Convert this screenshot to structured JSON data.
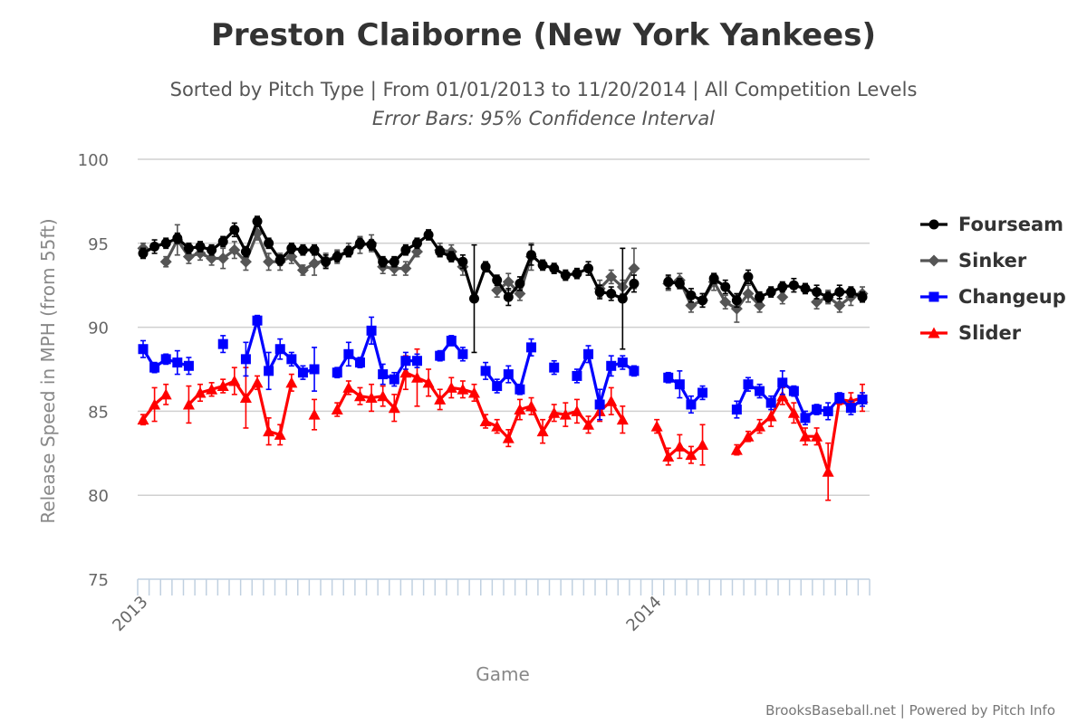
{
  "chart_data": {
    "type": "line",
    "title": "Preston Claiborne (New York Yankees)",
    "subtitle": "Sorted by Pitch Type | From 01/01/2013 to 11/20/2014 | All Competition Levels",
    "subtitle2": "Error Bars: 95% Confidence Interval",
    "xlabel": "Game",
    "ylabel": "Release Speed in MPH (from 55ft)",
    "ylim": [
      75,
      100
    ],
    "yticks": [
      75,
      80,
      85,
      90,
      95,
      100
    ],
    "x_tick_labels": [
      {
        "label": "2013",
        "game": 1
      },
      {
        "label": "2014",
        "game": 46
      }
    ],
    "n_games": 64,
    "grid": true,
    "legend_position": "right",
    "credits": "BrooksBaseball.net | Powered by Pitch Info",
    "series": [
      {
        "name": "Fourseam",
        "color": "#000000",
        "marker": "circle",
        "values": [
          94.4,
          94.8,
          95.0,
          95.3,
          94.7,
          94.8,
          94.6,
          95.1,
          95.8,
          94.5,
          96.3,
          95.0,
          94.0,
          94.7,
          94.6,
          94.6,
          93.9,
          94.2,
          94.5,
          95.0,
          94.9,
          93.9,
          93.9,
          94.6,
          95.0,
          95.5,
          94.5,
          94.2,
          93.9,
          91.7,
          93.6,
          92.8,
          91.8,
          92.6,
          94.3,
          93.7,
          93.5,
          93.1,
          93.2,
          93.5,
          92.1,
          92.0,
          91.7,
          92.6,
          null,
          null,
          92.7,
          92.6,
          91.9,
          91.6,
          92.9,
          92.4,
          91.6,
          93.0,
          91.8,
          92.1,
          92.4,
          92.5,
          92.3,
          92.1,
          91.8,
          92.1,
          92.1,
          91.8
        ],
        "err": [
          0.3,
          0.4,
          0.3,
          0.3,
          0.3,
          0.3,
          0.3,
          0.3,
          0.4,
          0.3,
          0.3,
          0.3,
          0.3,
          0.3,
          0.3,
          0.3,
          0.4,
          0.3,
          0.3,
          0.3,
          0.3,
          0.3,
          0.3,
          0.3,
          0.3,
          0.3,
          0.3,
          0.3,
          0.4,
          3.2,
          0.3,
          0.3,
          0.5,
          0.4,
          0.6,
          0.3,
          0.3,
          0.3,
          0.3,
          0.4,
          0.4,
          0.4,
          3.0,
          0.5,
          null,
          null,
          0.4,
          0.3,
          0.4,
          0.4,
          0.3,
          0.4,
          0.4,
          0.4,
          0.3,
          0.3,
          0.3,
          0.4,
          0.3,
          0.4,
          0.3,
          0.4,
          0.3,
          0.3
        ]
      },
      {
        "name": "Sinker",
        "color": "#555555",
        "marker": "diamond",
        "values": [
          94.7,
          null,
          93.9,
          95.2,
          94.2,
          94.4,
          94.1,
          94.1,
          94.6,
          93.9,
          95.6,
          93.9,
          93.9,
          94.2,
          93.4,
          93.8,
          94.0,
          94.2,
          94.6,
          94.9,
          95.0,
          93.6,
          93.5,
          93.5,
          94.5,
          null,
          94.6,
          94.5,
          93.6,
          null,
          null,
          92.2,
          92.7,
          92.0,
          94.2,
          null,
          null,
          null,
          null,
          null,
          92.3,
          93.0,
          92.4,
          93.5,
          null,
          null,
          92.6,
          92.8,
          91.3,
          91.6,
          92.7,
          91.5,
          91.1,
          92.0,
          91.3,
          null,
          91.8,
          null,
          null,
          91.5,
          91.8,
          91.3,
          91.8,
          92.0
        ],
        "err": [
          0.3,
          null,
          0.3,
          0.9,
          0.4,
          0.4,
          0.4,
          0.6,
          0.5,
          0.5,
          0.4,
          0.5,
          0.5,
          0.4,
          0.3,
          0.7,
          0.4,
          0.4,
          0.4,
          0.5,
          0.5,
          0.4,
          0.4,
          0.4,
          0.3,
          null,
          0.4,
          0.4,
          0.5,
          null,
          null,
          0.4,
          0.5,
          0.4,
          0.8,
          null,
          null,
          null,
          null,
          null,
          0.5,
          0.4,
          0.4,
          1.2,
          null,
          null,
          0.4,
          0.4,
          0.4,
          0.4,
          0.5,
          0.4,
          0.8,
          0.5,
          0.4,
          null,
          0.4,
          null,
          null,
          0.4,
          0.4,
          0.4,
          0.5,
          0.4
        ]
      },
      {
        "name": "Changeup",
        "color": "#0000ff",
        "marker": "square",
        "values": [
          88.7,
          87.6,
          88.1,
          87.9,
          87.7,
          null,
          null,
          89.0,
          null,
          88.1,
          90.4,
          87.4,
          88.7,
          88.1,
          87.3,
          87.5,
          null,
          87.3,
          88.4,
          87.9,
          89.8,
          87.2,
          86.9,
          88.0,
          88.0,
          null,
          88.3,
          89.2,
          88.4,
          null,
          87.4,
          86.5,
          87.2,
          86.3,
          88.8,
          null,
          87.6,
          null,
          87.1,
          88.4,
          85.4,
          87.7,
          87.9,
          87.4,
          null,
          null,
          87.0,
          86.6,
          85.4,
          86.1,
          null,
          null,
          85.1,
          86.6,
          86.2,
          85.5,
          86.7,
          86.2,
          84.6,
          85.1,
          85.0,
          85.8,
          85.2,
          85.7
        ],
        "err": [
          0.5,
          0.3,
          0.3,
          0.7,
          0.5,
          null,
          null,
          0.5,
          null,
          1.0,
          0.3,
          1.1,
          0.6,
          0.4,
          0.4,
          1.3,
          null,
          0.3,
          0.7,
          0.3,
          0.8,
          0.6,
          0.4,
          0.5,
          0.4,
          null,
          0.3,
          0.3,
          0.4,
          null,
          0.5,
          0.4,
          0.5,
          0.3,
          0.5,
          null,
          0.4,
          null,
          0.4,
          0.5,
          0.9,
          0.6,
          0.4,
          0.3,
          null,
          null,
          0.3,
          0.8,
          0.5,
          0.4,
          null,
          null,
          0.5,
          0.4,
          0.4,
          0.4,
          0.7,
          0.3,
          0.4,
          0.3,
          0.5,
          0.3,
          0.4,
          0.4
        ]
      },
      {
        "name": "Slider",
        "color": "#ff0000",
        "marker": "triangle",
        "values": [
          84.5,
          85.4,
          86.0,
          null,
          85.4,
          86.1,
          86.3,
          86.5,
          86.8,
          85.8,
          86.7,
          83.8,
          83.6,
          86.7,
          null,
          84.8,
          null,
          85.1,
          86.4,
          85.9,
          85.8,
          85.9,
          85.2,
          87.3,
          87.0,
          86.7,
          85.7,
          86.4,
          86.3,
          86.1,
          84.4,
          84.1,
          83.4,
          85.1,
          85.3,
          83.8,
          84.9,
          84.8,
          85.0,
          84.2,
          85.0,
          85.6,
          84.5,
          null,
          null,
          84.1,
          82.3,
          82.9,
          82.4,
          83.0,
          null,
          null,
          82.7,
          83.5,
          84.1,
          84.7,
          85.9,
          84.9,
          83.5,
          83.5,
          81.4,
          85.7,
          85.6,
          85.8
        ],
        "err": [
          0.3,
          1.0,
          0.6,
          null,
          1.1,
          0.5,
          0.4,
          0.4,
          0.8,
          1.8,
          0.4,
          0.8,
          0.6,
          0.5,
          null,
          0.9,
          null,
          0.4,
          0.4,
          0.5,
          0.8,
          0.6,
          0.8,
          1.0,
          1.7,
          0.8,
          0.6,
          0.6,
          0.5,
          0.5,
          0.4,
          0.4,
          0.5,
          0.6,
          0.5,
          0.7,
          0.5,
          0.7,
          0.7,
          0.5,
          0.6,
          0.8,
          0.8,
          null,
          null,
          0.4,
          0.5,
          0.7,
          0.5,
          1.2,
          null,
          null,
          0.3,
          0.3,
          0.4,
          0.6,
          0.5,
          0.6,
          0.5,
          0.5,
          1.7,
          0.3,
          0.5,
          0.8
        ]
      }
    ]
  }
}
